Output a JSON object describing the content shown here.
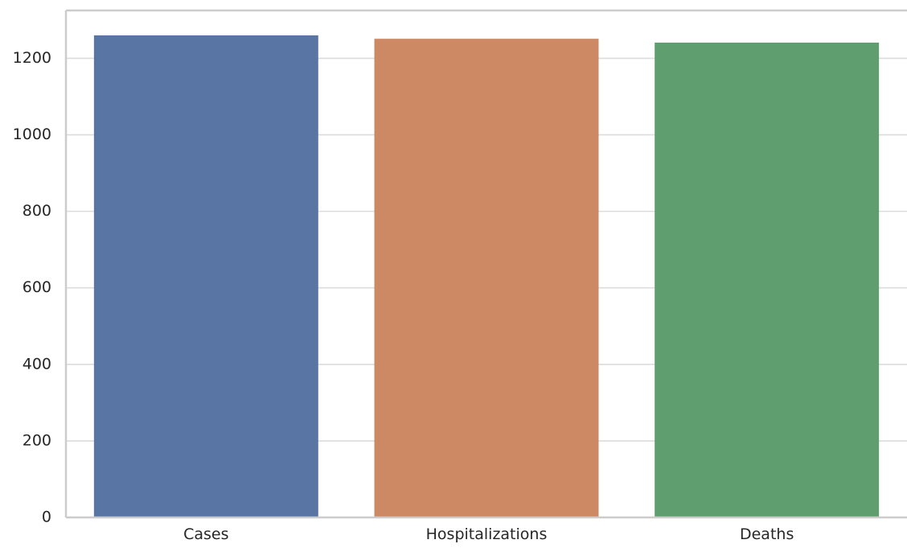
{
  "chart_data": {
    "type": "bar",
    "categories": [
      "Cases",
      "Hospitalizations",
      "Deaths"
    ],
    "values": [
      1260,
      1251,
      1241
    ],
    "colors": [
      "#5975a4",
      "#cc8963",
      "#5f9e6e"
    ],
    "yticks": [
      0,
      200,
      400,
      600,
      800,
      1000,
      1200
    ],
    "ylim": [
      0,
      1325
    ],
    "grid": "horizontal",
    "title": "",
    "xlabel": "",
    "ylabel": ""
  }
}
